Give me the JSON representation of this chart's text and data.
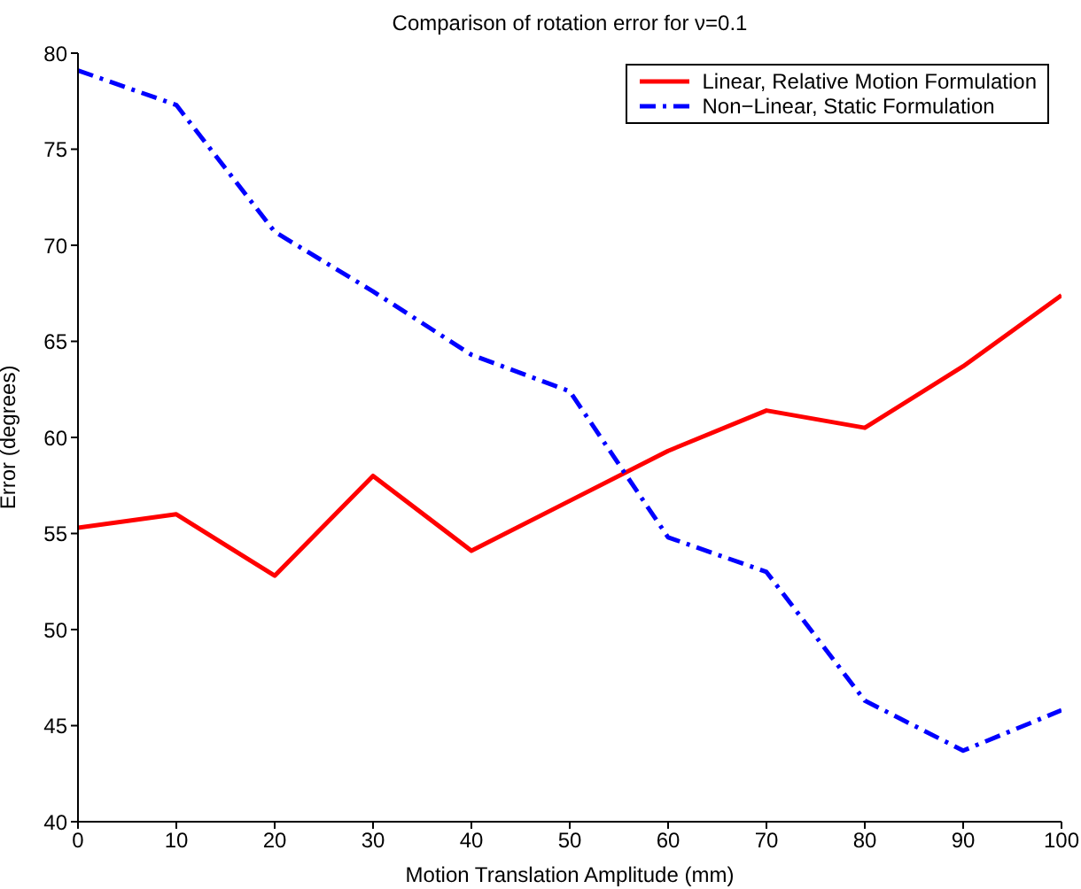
{
  "chart_data": {
    "type": "line",
    "title": "Comparison of rotation error for ν=0.1",
    "xlabel": "Motion Translation Amplitude (mm)",
    "ylabel": "Error (degrees)",
    "x": [
      0,
      10,
      20,
      30,
      40,
      50,
      60,
      70,
      80,
      90,
      100
    ],
    "series": [
      {
        "name": "Linear, Relative Motion Formulation",
        "color": "#ff0000",
        "line_style": "solid",
        "values": [
          55.3,
          56.0,
          52.8,
          58.0,
          54.1,
          56.7,
          59.3,
          61.4,
          60.5,
          63.7,
          67.4
        ]
      },
      {
        "name": "Non−Linear, Static Formulation",
        "color": "#0000ff",
        "line_style": "dashed",
        "values": [
          79.1,
          77.3,
          70.7,
          67.6,
          64.3,
          62.4,
          54.8,
          53.0,
          46.3,
          43.7,
          45.8
        ]
      }
    ],
    "xlim": [
      0,
      100
    ],
    "xticks": [
      0,
      10,
      20,
      30,
      40,
      50,
      60,
      70,
      80,
      90,
      100
    ],
    "ylim": [
      40,
      80
    ],
    "yticks": [
      40,
      45,
      50,
      55,
      60,
      65,
      70,
      75,
      80
    ],
    "legend": "top right",
    "marker": "none"
  }
}
